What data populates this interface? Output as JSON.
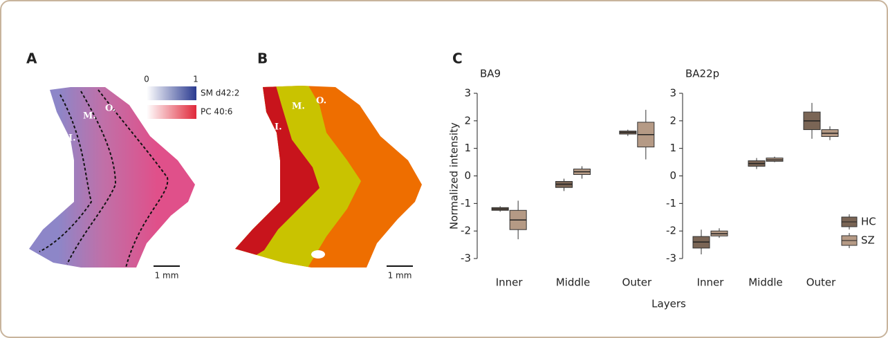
{
  "panel_a": {
    "label": "A",
    "colorbar_min": 0,
    "colorbar_max": 1,
    "colorbars": [
      "SM d42:2",
      "PC 40:6"
    ],
    "regions": [
      "I.",
      "M.",
      "O."
    ],
    "scale": "1 mm"
  },
  "panel_b": {
    "label": "B",
    "regions": [
      "I.",
      "M.",
      "O."
    ],
    "scale": "1 mm"
  },
  "panel_c": {
    "label": "C",
    "x_label": "Layers"
  },
  "chart_data": [
    {
      "type": "box",
      "title": "BA9",
      "y_label": "Normalized intensity",
      "categories": [
        "Inner",
        "Middle",
        "Outer"
      ],
      "ylim": [
        -3.2,
        3.2
      ],
      "yticks": [
        -3,
        -2,
        -1,
        0,
        1,
        2,
        3
      ],
      "series": [
        {
          "name": "HC",
          "color": "#7a6555",
          "min": [
            -1.3,
            -0.55,
            1.45
          ],
          "q1": [
            -1.25,
            -0.42,
            1.52
          ],
          "median": [
            -1.2,
            -0.3,
            1.58
          ],
          "q3": [
            -1.15,
            -0.2,
            1.63
          ],
          "max": [
            -1.1,
            -0.1,
            1.68
          ]
        },
        {
          "name": "SZ",
          "color": "#b59a85",
          "min": [
            -2.3,
            -0.1,
            0.6
          ],
          "q1": [
            -1.95,
            0.05,
            1.05
          ],
          "median": [
            -1.6,
            0.15,
            1.5
          ],
          "q3": [
            -1.25,
            0.25,
            1.95
          ],
          "max": [
            -0.9,
            0.35,
            2.4
          ]
        }
      ]
    },
    {
      "type": "box",
      "title": "BA22p",
      "legend": "right",
      "categories": [
        "Inner",
        "Middle",
        "Outer"
      ],
      "ylim": [
        -3.2,
        3.2
      ],
      "yticks": [
        -3,
        -2,
        -1,
        0,
        1,
        2,
        3
      ],
      "series": [
        {
          "name": "HC",
          "color": "#7a6555",
          "min": [
            -2.85,
            0.25,
            1.35
          ],
          "q1": [
            -2.62,
            0.35,
            1.68
          ],
          "median": [
            -2.4,
            0.45,
            2.0
          ],
          "q3": [
            -2.2,
            0.55,
            2.32
          ],
          "max": [
            -1.95,
            0.65,
            2.65
          ]
        },
        {
          "name": "SZ",
          "color": "#b59a85",
          "min": [
            -2.25,
            0.5,
            1.3
          ],
          "q1": [
            -2.18,
            0.53,
            1.43
          ],
          "median": [
            -2.1,
            0.58,
            1.55
          ],
          "q3": [
            -2.0,
            0.65,
            1.68
          ],
          "max": [
            -1.9,
            0.7,
            1.8
          ]
        }
      ]
    }
  ]
}
